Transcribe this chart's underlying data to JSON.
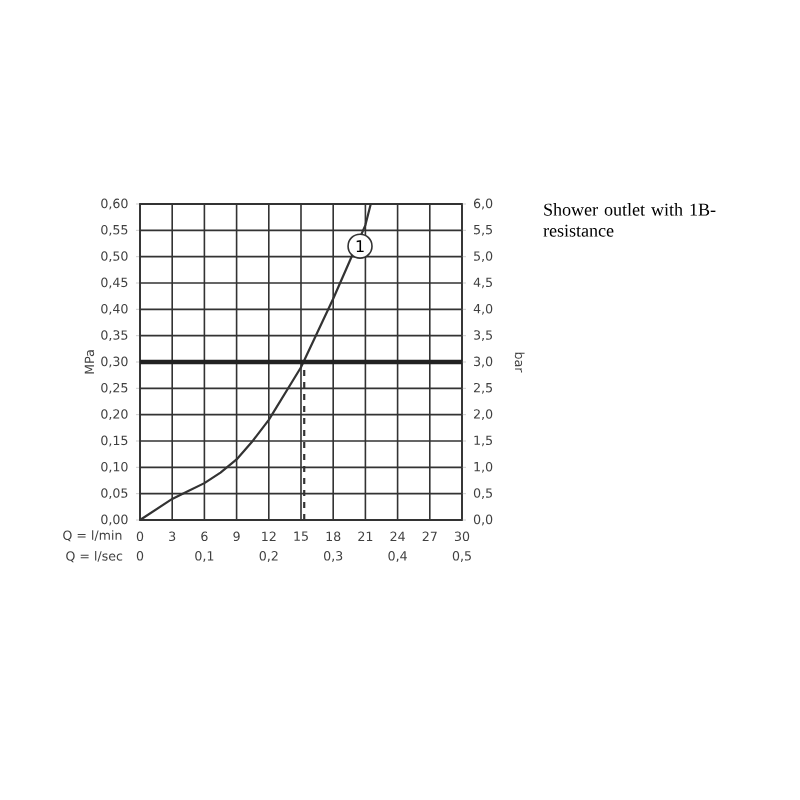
{
  "chart_data": {
    "type": "line",
    "annotations": [
      "Shower outlet with 1B-resistance",
      {
        "text": "1",
        "x": 20.5,
        "y": 0.52
      }
    ],
    "xlabel": "Q = l/min",
    "x2label": "Q = l/sec",
    "ylabel": "MPa",
    "y2label": "bar",
    "xlim": [
      0,
      30
    ],
    "xticks": [
      0,
      3,
      6,
      9,
      12,
      15,
      18,
      21,
      24,
      27,
      30
    ],
    "x2lim": [
      0,
      0.5
    ],
    "x2ticks": [
      0,
      {
        "value": 0.1,
        "label": "0,1"
      },
      {
        "value": 0.2,
        "label": "0,2"
      },
      {
        "value": 0.3,
        "label": "0,3"
      },
      {
        "value": 0.4,
        "label": "0,4"
      },
      {
        "value": 0.5,
        "label": "0,5"
      }
    ],
    "ylim": [
      0,
      0.6
    ],
    "yticks": [
      {
        "value": 0,
        "label": "0,00"
      },
      {
        "value": 0.05,
        "label": "0,05"
      },
      {
        "value": 0.1,
        "label": "0,10"
      },
      {
        "value": 0.15,
        "label": "0,15"
      },
      {
        "value": 0.2,
        "label": "0,20"
      },
      {
        "value": 0.25,
        "label": "0,25"
      },
      {
        "value": 0.3,
        "label": "0,30"
      },
      {
        "value": 0.35,
        "label": "0,35"
      },
      {
        "value": 0.4,
        "label": "0,40"
      },
      {
        "value": 0.45,
        "label": "0,45"
      },
      {
        "value": 0.5,
        "label": "0,50"
      },
      {
        "value": 0.55,
        "label": "0,55"
      },
      {
        "value": 0.6,
        "label": "0,60"
      }
    ],
    "y2lim": [
      0,
      6
    ],
    "y2ticks": [
      {
        "value": 0,
        "label": "0,0"
      },
      {
        "value": 0.5,
        "label": "0,5"
      },
      {
        "value": 1,
        "label": "1,0"
      },
      {
        "value": 1.5,
        "label": "1,5"
      },
      {
        "value": 2,
        "label": "2,0"
      },
      {
        "value": 2.5,
        "label": "2,5"
      },
      {
        "value": 3,
        "label": "3,0"
      },
      {
        "value": 3.5,
        "label": "3,5"
      },
      {
        "value": 4,
        "label": "4,0"
      },
      {
        "value": 4.5,
        "label": "4,5"
      },
      {
        "value": 5,
        "label": "5,0"
      },
      {
        "value": 5.5,
        "label": "5,5"
      },
      {
        "value": 6,
        "label": "6,0"
      }
    ],
    "grid": true,
    "marker": "none",
    "series": [
      {
        "color": "#333333",
        "x": [
          0,
          1.5,
          3,
          4.5,
          6,
          7.5,
          9,
          10.5,
          12,
          13.5,
          15,
          16.5,
          18,
          19.5,
          21,
          21.5
        ],
        "values": [
          0,
          0.02,
          0.04,
          0.055,
          0.07,
          0.09,
          0.115,
          0.15,
          0.19,
          0.24,
          0.29,
          0.355,
          0.42,
          0.49,
          0.56,
          0.6
        ]
      },
      {
        "color": "#333333",
        "line_style": "dashed",
        "x": [
          15.3,
          15.3
        ],
        "values": [
          0,
          0.3
        ]
      }
    ],
    "ref_lines": [
      {
        "axis": "y",
        "value": 0.3,
        "color": "#222222"
      }
    ]
  }
}
